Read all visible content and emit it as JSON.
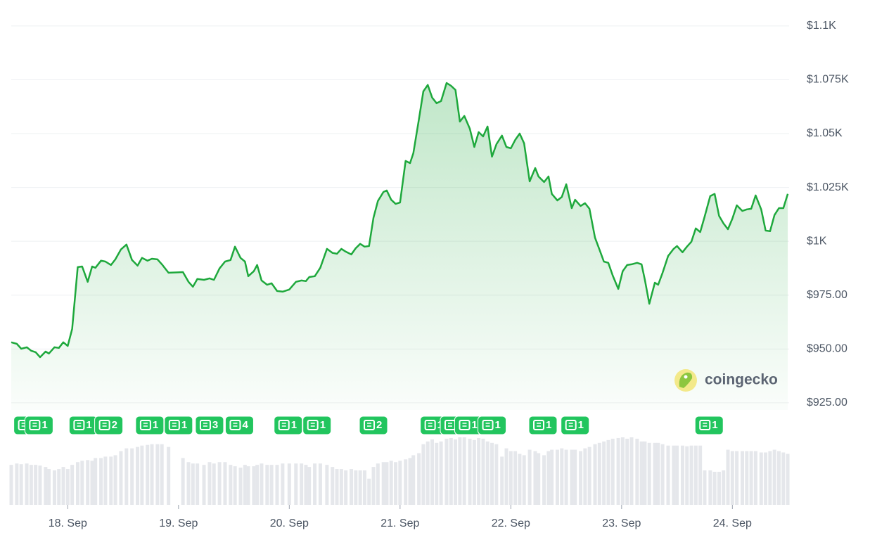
{
  "chart_data": {
    "type": "line",
    "color": "#1ea83c",
    "volume_color": "#e5e7eb",
    "grid": true,
    "watermark": "coingecko",
    "xlim": [
      -0.51,
      6.53
    ],
    "ylim": [
      921.7,
      1102.9
    ],
    "volume_lim": [
      0,
      100
    ],
    "yticks": [
      {
        "value": 925,
        "label": "$925.00"
      },
      {
        "value": 950,
        "label": "$950.00"
      },
      {
        "value": 975,
        "label": "$975.00"
      },
      {
        "value": 1000,
        "label": "$1K"
      },
      {
        "value": 1025,
        "label": "$1.025K"
      },
      {
        "value": 1050,
        "label": "$1.05K"
      },
      {
        "value": 1075,
        "label": "$1.075K"
      },
      {
        "value": 1100,
        "label": "$1.1K"
      }
    ],
    "xticks": [
      {
        "value": 0,
        "label": "18. Sep"
      },
      {
        "value": 1,
        "label": "19. Sep"
      },
      {
        "value": 2,
        "label": "20. Sep"
      },
      {
        "value": 3,
        "label": "21. Sep"
      },
      {
        "value": 4,
        "label": "22. Sep"
      },
      {
        "value": 5,
        "label": "23. Sep"
      },
      {
        "value": 6,
        "label": "24. Sep"
      }
    ],
    "x": [
      -0.51,
      -0.46,
      -0.42,
      -0.37,
      -0.33,
      -0.29,
      -0.25,
      -0.2,
      -0.17,
      -0.12,
      -0.08,
      -0.04,
      0,
      0.04,
      0.09,
      0.13,
      0.18,
      0.22,
      0.25,
      0.3,
      0.34,
      0.39,
      0.43,
      0.48,
      0.53,
      0.58,
      0.63,
      0.67,
      0.72,
      0.76,
      0.81,
      0.85,
      0.91,
      1.04,
      1.09,
      1.13,
      1.17,
      1.23,
      1.28,
      1.32,
      1.37,
      1.42,
      1.47,
      1.51,
      1.56,
      1.6,
      1.63,
      1.68,
      1.71,
      1.75,
      1.8,
      1.84,
      1.89,
      1.94,
      2,
      2.06,
      2.11,
      2.15,
      2.18,
      2.23,
      2.28,
      2.34,
      2.39,
      2.43,
      2.47,
      2.51,
      2.56,
      2.6,
      2.64,
      2.68,
      2.72,
      2.76,
      2.8,
      2.85,
      2.88,
      2.92,
      2.96,
      3,
      3.05,
      3.09,
      3.12,
      3.17,
      3.21,
      3.25,
      3.29,
      3.33,
      3.37,
      3.42,
      3.46,
      3.5,
      3.54,
      3.58,
      3.63,
      3.67,
      3.71,
      3.75,
      3.79,
      3.83,
      3.87,
      3.92,
      3.96,
      4,
      4.04,
      4.08,
      4.12,
      4.17,
      4.22,
      4.25,
      4.3,
      4.34,
      4.37,
      4.42,
      4.46,
      4.5,
      4.55,
      4.58,
      4.63,
      4.67,
      4.71,
      4.76,
      4.8,
      4.84,
      4.88,
      4.92,
      4.97,
      5.01,
      5.05,
      5.09,
      5.14,
      5.18,
      5.21,
      5.25,
      5.3,
      5.33,
      5.37,
      5.42,
      5.47,
      5.5,
      5.55,
      5.59,
      5.63,
      5.67,
      5.71,
      5.75,
      5.8,
      5.84,
      5.88,
      5.92,
      5.96,
      6,
      6.04,
      6.09,
      6.13,
      6.17,
      6.21,
      6.26,
      6.3,
      6.34,
      6.38,
      6.42,
      6.46,
      6.5
    ],
    "values": [
      953.1,
      952.4,
      950.1,
      950.8,
      949.2,
      948.5,
      946.2,
      948.8,
      947.9,
      950.8,
      950.5,
      953.1,
      951.4,
      959.3,
      988.0,
      988.3,
      981.2,
      988.3,
      987.7,
      991.0,
      990.6,
      989.0,
      991.6,
      996.2,
      998.5,
      991.3,
      988.7,
      992.3,
      991.0,
      991.9,
      991.6,
      989.3,
      985.4,
      985.7,
      981.2,
      978.9,
      982.5,
      982.1,
      982.8,
      982.1,
      987.4,
      990.6,
      991.3,
      997.5,
      992.3,
      990.6,
      983.8,
      986.1,
      989.0,
      981.8,
      979.8,
      980.5,
      976.9,
      976.6,
      977.6,
      981.2,
      981.8,
      981.5,
      983.4,
      983.8,
      987.7,
      996.5,
      994.6,
      994.2,
      996.5,
      995.2,
      993.9,
      996.8,
      998.8,
      997.5,
      997.8,
      1010.9,
      1018.7,
      1022.9,
      1023.6,
      1019.3,
      1017.4,
      1018.0,
      1037.3,
      1036.3,
      1040.9,
      1056.6,
      1069.6,
      1072.6,
      1066.7,
      1064.1,
      1065.1,
      1073.5,
      1072.2,
      1070.3,
      1055.6,
      1058.2,
      1052.3,
      1043.8,
      1050.7,
      1048.7,
      1053.3,
      1039.3,
      1045.1,
      1049.1,
      1043.8,
      1043.2,
      1047.1,
      1050.0,
      1045.5,
      1027.8,
      1034.0,
      1030.1,
      1027.5,
      1030.1,
      1022.0,
      1019.0,
      1020.6,
      1026.5,
      1015.4,
      1019.3,
      1016.4,
      1017.7,
      1015.1,
      1001.7,
      996.2,
      990.6,
      990.0,
      984.1,
      977.9,
      986.1,
      989.0,
      989.3,
      990.0,
      989.3,
      982.1,
      971.0,
      980.8,
      979.8,
      985.4,
      993.2,
      996.5,
      997.8,
      994.9,
      997.5,
      999.8,
      1006.0,
      1004.3,
      1011.5,
      1021.0,
      1022.0,
      1011.8,
      1008.3,
      1005.6,
      1010.5,
      1016.7,
      1014.1,
      1014.8,
      1015.1,
      1021.3,
      1014.8,
      1005.0,
      1004.7,
      1012.2,
      1015.4,
      1015.4,
      1022.0
    ],
    "volume": [
      58,
      60,
      59,
      60,
      58,
      58,
      57,
      55,
      52,
      50,
      52,
      55,
      52,
      58,
      62,
      64,
      65,
      64,
      68,
      68,
      70,
      70,
      72,
      78,
      82,
      82,
      84,
      86,
      87,
      88,
      88,
      88,
      84,
      68,
      62,
      60,
      60,
      58,
      62,
      60,
      62,
      62,
      58,
      56,
      54,
      58,
      56,
      56,
      58,
      60,
      58,
      58,
      58,
      60,
      60,
      60,
      60,
      58,
      55,
      60,
      60,
      58,
      55,
      52,
      52,
      50,
      52,
      50,
      50,
      50,
      38,
      55,
      60,
      62,
      62,
      64,
      62,
      64,
      66,
      68,
      72,
      75,
      88,
      92,
      95,
      90,
      92,
      96,
      97,
      95,
      98,
      98,
      96,
      94,
      97,
      96,
      92,
      90,
      88,
      70,
      82,
      78,
      78,
      74,
      72,
      80,
      78,
      75,
      72,
      78,
      80,
      80,
      82,
      80,
      80,
      80,
      78,
      82,
      84,
      88,
      90,
      92,
      94,
      96,
      97,
      98,
      96,
      98,
      96,
      92,
      92,
      90,
      90,
      90,
      88,
      86,
      86,
      86,
      86,
      85,
      86,
      86,
      86,
      50,
      50,
      48,
      48,
      50,
      80,
      78,
      78,
      78,
      78,
      78,
      78,
      76,
      76,
      78,
      80,
      78,
      76,
      74
    ],
    "news": [
      {
        "x": -0.36,
        "count": 1
      },
      {
        "x": -0.26,
        "count": 1
      },
      {
        "x": 0.14,
        "count": 1
      },
      {
        "x": 0.37,
        "count": 2
      },
      {
        "x": 0.74,
        "count": 1
      },
      {
        "x": 1.0,
        "count": 1
      },
      {
        "x": 1.28,
        "count": 3
      },
      {
        "x": 1.55,
        "count": 4
      },
      {
        "x": 1.99,
        "count": 1
      },
      {
        "x": 2.25,
        "count": 1
      },
      {
        "x": 2.76,
        "count": 2
      },
      {
        "x": 3.31,
        "count": 1
      },
      {
        "x": 3.49,
        "count": 1
      },
      {
        "x": 3.62,
        "count": 1
      },
      {
        "x": 3.83,
        "count": 1
      },
      {
        "x": 4.29,
        "count": 1
      },
      {
        "x": 4.58,
        "count": 1
      },
      {
        "x": 5.79,
        "count": 1
      }
    ]
  }
}
